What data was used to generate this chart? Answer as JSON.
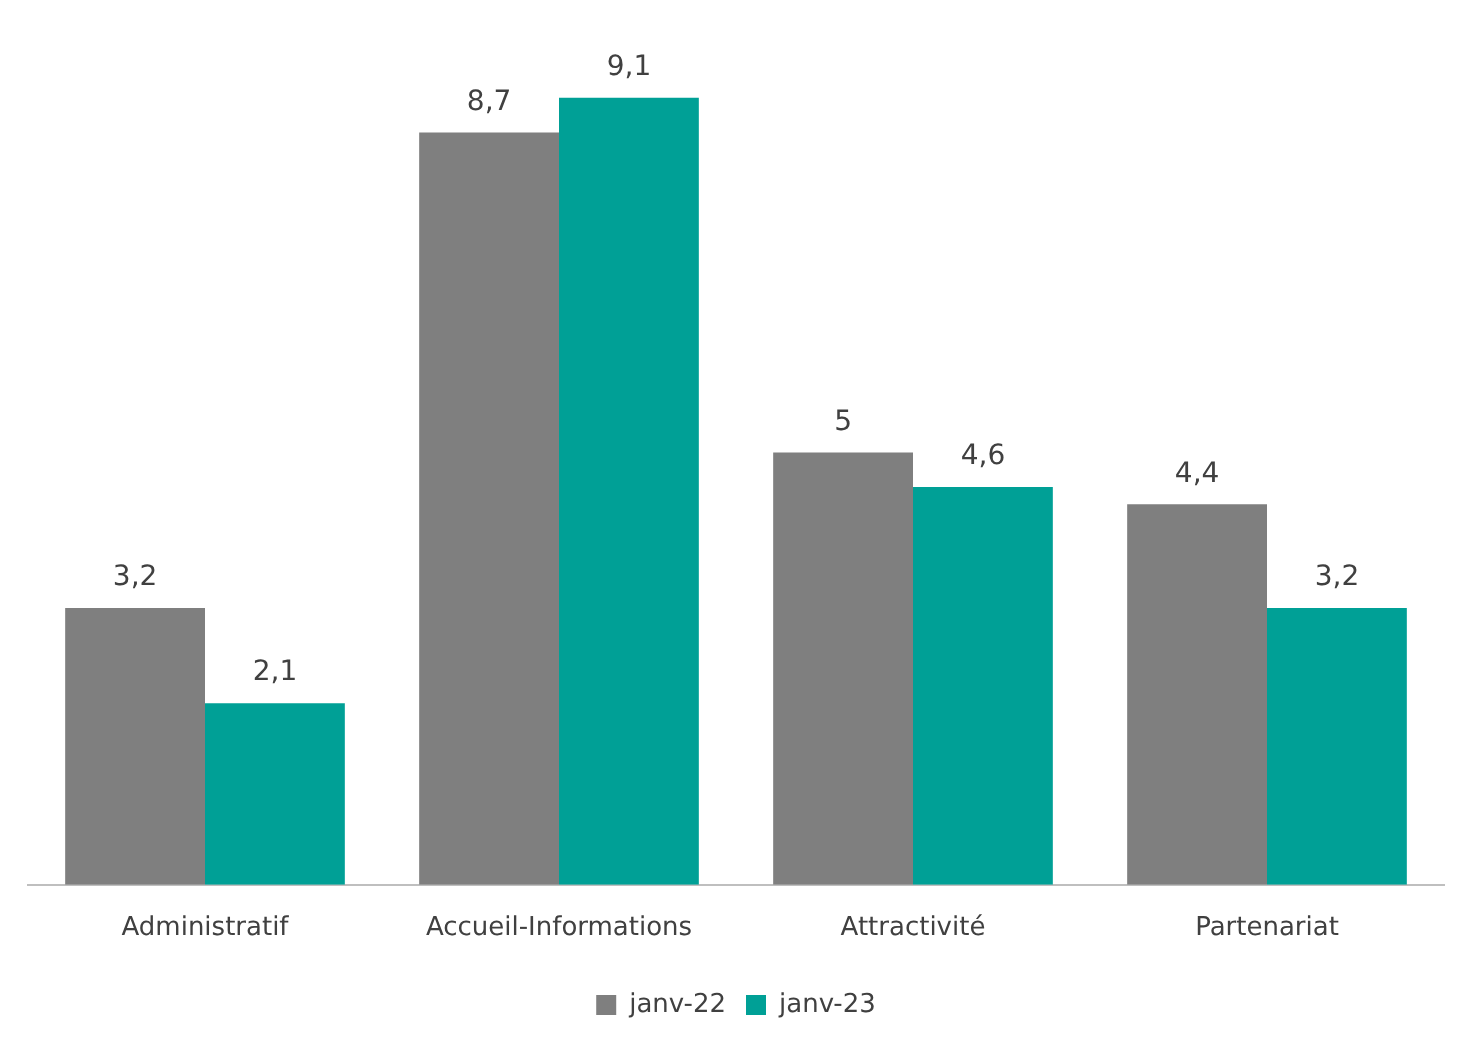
{
  "chart_data": {
    "type": "bar",
    "categories": [
      "Administratif",
      "Accueil-Informations",
      "Attractivité",
      "Partenariat"
    ],
    "series": [
      {
        "name": "janv-22",
        "color": "#7f7f7f",
        "values": [
          3.2,
          8.7,
          5,
          4.4
        ],
        "value_labels": [
          "3,2",
          "8,7",
          "5",
          "4,4"
        ]
      },
      {
        "name": "janv-23",
        "color": "#00a096",
        "values": [
          2.1,
          9.1,
          4.6,
          3.2
        ],
        "value_labels": [
          "2,1",
          "9,1",
          "4,6",
          "3,2"
        ]
      }
    ],
    "tick_labels": "x",
    "grid": false,
    "legend": "bottom"
  }
}
